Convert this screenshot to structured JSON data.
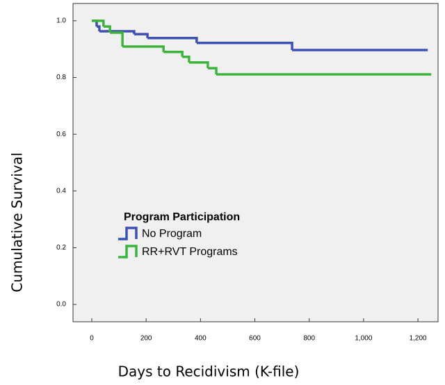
{
  "chart_data": {
    "type": "step",
    "x_label": "Days to Recidivism (K-file)",
    "y_label": "Cumulative Survival",
    "legend_title": "Program Participation",
    "xlim": [
      -69,
      1274
    ],
    "ylim": [
      -0.061,
      1.061
    ],
    "xticks": [
      0,
      200,
      400,
      600,
      800,
      {
        "value": 1000,
        "label": "1,000"
      },
      {
        "value": 1200,
        "label": "1,200"
      }
    ],
    "yticks": [
      {
        "value": 0,
        "label": "0.0"
      },
      {
        "value": 0.2,
        "label": "0.2"
      },
      {
        "value": 0.4,
        "label": "0.4"
      },
      {
        "value": 0.6,
        "label": "0.6"
      },
      {
        "value": 0.8,
        "label": "0.8"
      },
      {
        "value": 1,
        "label": "1.0"
      }
    ],
    "series": [
      {
        "name": "No Program",
        "color": "#3c50b4",
        "x": [
          0,
          18,
          28,
          156,
          205,
          386,
          737,
          1236
        ],
        "values": [
          1,
          0.98,
          0.963,
          0.953,
          0.939,
          0.922,
          0.897,
          0.897
        ]
      },
      {
        "name": "RR+RVT Programs",
        "color": "#3cb43c",
        "x": [
          0,
          43,
          67,
          113,
          264,
          333,
          358,
          427,
          458,
          1249
        ],
        "values": [
          1,
          0.98,
          0.958,
          0.909,
          0.89,
          0.873,
          0.853,
          0.833,
          0.811,
          0.811
        ]
      }
    ]
  }
}
